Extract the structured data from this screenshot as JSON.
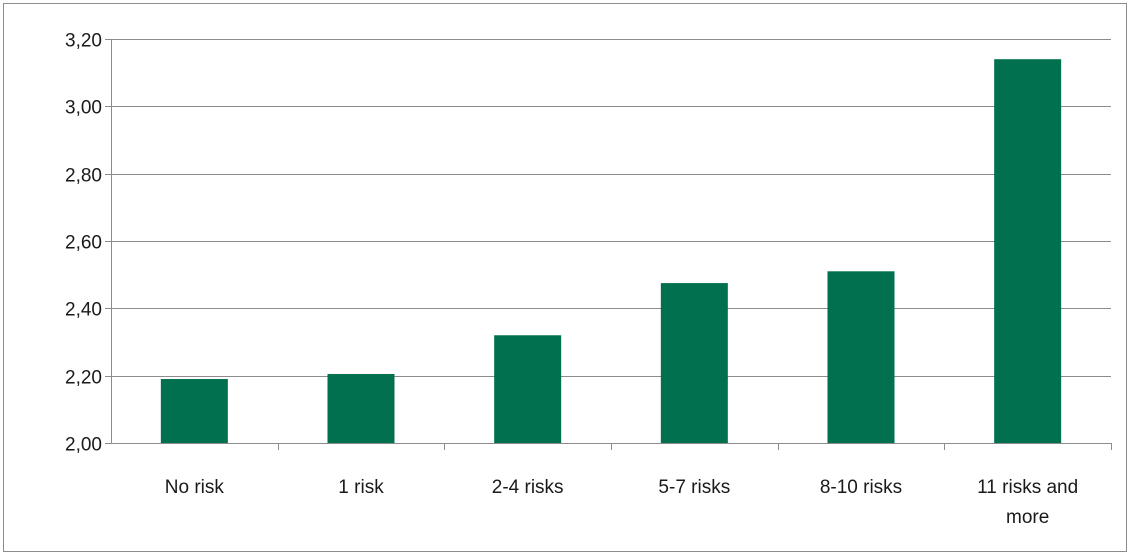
{
  "chart_data": {
    "type": "bar",
    "title": "",
    "xlabel": "",
    "ylabel": "",
    "categories": [
      [
        "No risk"
      ],
      [
        "1 risk"
      ],
      [
        "2-4 risks"
      ],
      [
        "5-7 risks"
      ],
      [
        "8-10 risks"
      ],
      [
        "11 risks and",
        "more"
      ]
    ],
    "values": [
      2.19,
      2.205,
      2.32,
      2.475,
      2.51,
      3.14
    ],
    "ylim": [
      2.0,
      3.2
    ],
    "yticks": [
      "2,00",
      "2,20",
      "2,40",
      "2,60",
      "2,80",
      "3,00",
      "3,20"
    ],
    "grid": true,
    "legend": "none",
    "bar_color": "#00704f",
    "grid_color": "#8c8c8c"
  }
}
